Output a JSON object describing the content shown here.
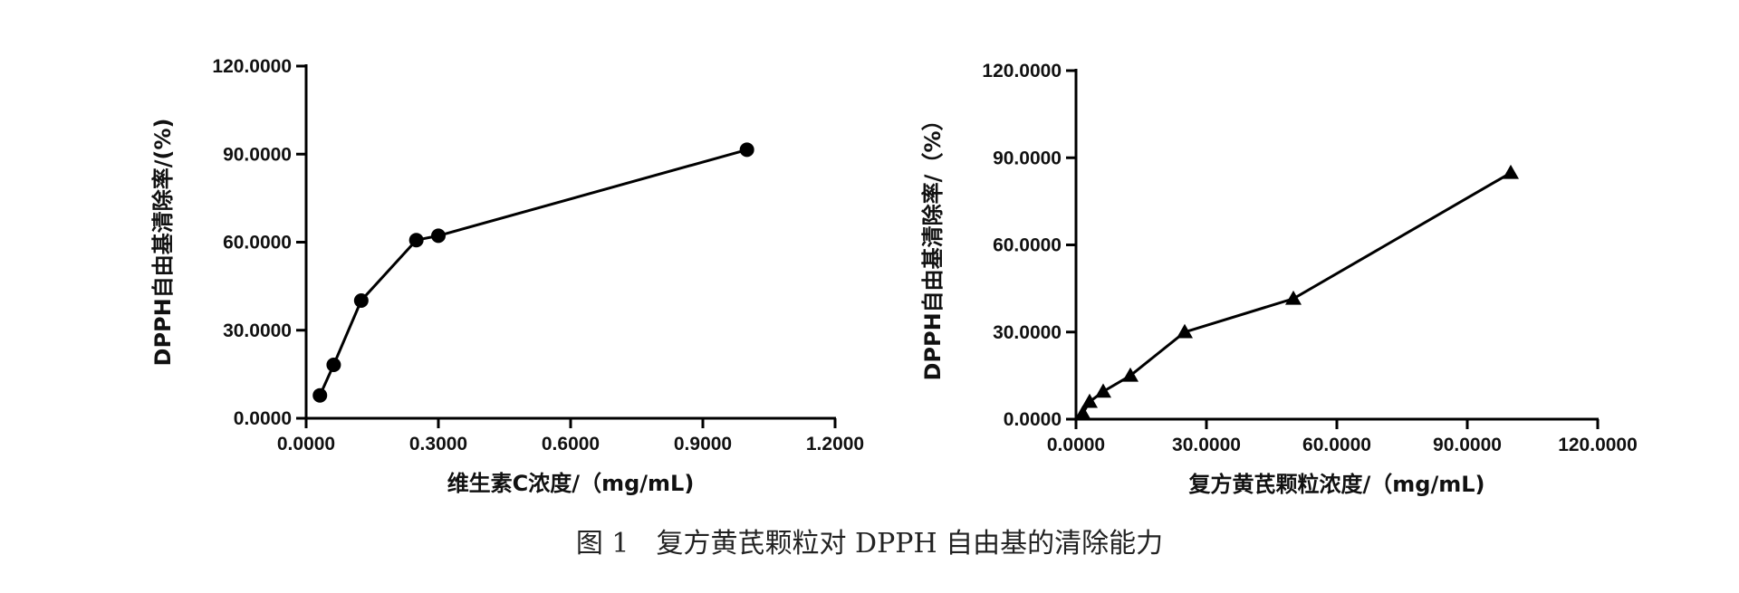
{
  "caption": "图 1　复方黄芪颗粒对 DPPH 自由基的清除能力",
  "chart_data": [
    {
      "type": "line",
      "marker": "circle",
      "xlabel": "维生素C浓度/（mg/mL)",
      "ylabel": "DPPH自由基清除率/(%)",
      "xlim": [
        0,
        1.2
      ],
      "ylim": [
        0,
        120
      ],
      "xticks": [
        0,
        0.3,
        0.6,
        0.9,
        1.2
      ],
      "yticks": [
        0,
        30,
        60,
        90,
        120
      ],
      "xtick_labels": [
        "0.0000",
        "0.3000",
        "0.6000",
        "0.9000",
        "1.2000"
      ],
      "ytick_labels": [
        "0.0000",
        "30.0000",
        "60.0000",
        "90.0000",
        "120.0000"
      ],
      "series": [
        {
          "x": [
            0.0313,
            0.0625,
            0.125,
            0.25,
            0.3,
            1.0
          ],
          "y": [
            7.8,
            18.2,
            40.1,
            60.7,
            62.2,
            91.5
          ]
        }
      ],
      "color": "#000000"
    },
    {
      "type": "line",
      "marker": "triangle",
      "xlabel": "复方黄芪颗粒浓度/（mg/mL)",
      "ylabel": "DPPH自由基清除率/（%）",
      "xlim": [
        0,
        120
      ],
      "ylim": [
        0,
        120
      ],
      "xticks": [
        0,
        30,
        60,
        90,
        120
      ],
      "yticks": [
        0,
        30,
        60,
        90,
        120
      ],
      "xtick_labels": [
        "0.0000",
        "30.0000",
        "60.0000",
        "90.0000",
        "120.0000"
      ],
      "ytick_labels": [
        "0.0000",
        "30.0000",
        "60.0000",
        "90.0000",
        "120.0000"
      ],
      "series": [
        {
          "x": [
            1.5625,
            3.125,
            6.25,
            12.5,
            25,
            50,
            100
          ],
          "y": [
            2.0,
            6.0,
            9.5,
            15.0,
            30.0,
            41.5,
            84.8
          ]
        }
      ],
      "color": "#000000"
    }
  ]
}
